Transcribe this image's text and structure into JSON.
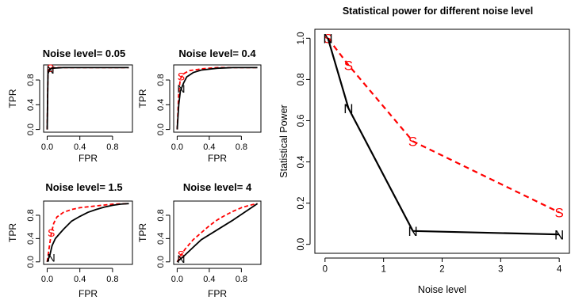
{
  "colors": {
    "N": "#000000",
    "S": "#ff0000"
  },
  "chart_data": [
    {
      "type": "line",
      "title": "Noise level= 0.05",
      "xlabel": "FPR",
      "ylabel": "TPR",
      "xlim": [
        0,
        1
      ],
      "ylim": [
        0,
        1
      ],
      "x_ticks": [
        "0.0",
        "0.4",
        "0.8"
      ],
      "y_ticks": [
        "0.0",
        "0.4",
        "0.8"
      ],
      "series": [
        {
          "marker": "N",
          "style": "solid",
          "x": [
            0,
            0.01,
            0.03,
            0.06,
            0.2,
            1.0
          ],
          "y": [
            0,
            0.9,
            0.97,
            0.99,
            1.0,
            1.0
          ],
          "marker_point": [
            0.04,
            0.97
          ]
        },
        {
          "marker": "S",
          "style": "dashed",
          "x": [
            0,
            0.01,
            0.03,
            0.06,
            0.2,
            1.0
          ],
          "y": [
            0,
            0.95,
            0.99,
            1.0,
            1.0,
            1.0
          ],
          "marker_point": [
            0.04,
            0.99
          ]
        }
      ]
    },
    {
      "type": "line",
      "title": "Noise level= 0.4",
      "xlabel": "FPR",
      "ylabel": "TPR",
      "xlim": [
        0,
        1
      ],
      "ylim": [
        0,
        1
      ],
      "x_ticks": [
        "0.0",
        "0.4",
        "0.8"
      ],
      "y_ticks": [
        "0.0",
        "0.4",
        "0.8"
      ],
      "series": [
        {
          "marker": "N",
          "style": "solid",
          "x": [
            0,
            0.02,
            0.04,
            0.08,
            0.12,
            0.2,
            0.3,
            0.5,
            0.7,
            1.0
          ],
          "y": [
            0,
            0.4,
            0.62,
            0.75,
            0.85,
            0.92,
            0.96,
            0.99,
            1.0,
            1.0
          ],
          "marker_point": [
            0.05,
            0.66
          ]
        },
        {
          "marker": "S",
          "style": "dashed",
          "x": [
            0,
            0.02,
            0.04,
            0.08,
            0.15,
            0.3,
            0.5,
            1.0
          ],
          "y": [
            0,
            0.6,
            0.82,
            0.9,
            0.95,
            0.98,
            1.0,
            1.0
          ],
          "marker_point": [
            0.05,
            0.86
          ]
        }
      ]
    },
    {
      "type": "line",
      "title": "Noise level= 1.5",
      "xlabel": "FPR",
      "ylabel": "TPR",
      "xlim": [
        0,
        1
      ],
      "ylim": [
        0,
        1
      ],
      "x_ticks": [
        "0.0",
        "0.4",
        "0.8"
      ],
      "y_ticks": [
        "0.0",
        "0.4",
        "0.8"
      ],
      "series": [
        {
          "marker": "N",
          "style": "solid",
          "x": [
            0,
            0.03,
            0.06,
            0.1,
            0.15,
            0.2,
            0.3,
            0.4,
            0.5,
            0.6,
            0.7,
            0.8,
            0.9,
            1.0
          ],
          "y": [
            0,
            0.1,
            0.28,
            0.4,
            0.48,
            0.56,
            0.7,
            0.78,
            0.85,
            0.9,
            0.94,
            0.97,
            0.99,
            1.0
          ],
          "marker_point": [
            0.05,
            0.07
          ]
        },
        {
          "marker": "S",
          "style": "dashed",
          "x": [
            0,
            0.03,
            0.05,
            0.08,
            0.12,
            0.2,
            0.3,
            0.4,
            0.6,
            0.8,
            1.0
          ],
          "y": [
            0,
            0.3,
            0.48,
            0.66,
            0.77,
            0.85,
            0.9,
            0.93,
            0.96,
            0.99,
            1.0
          ],
          "marker_point": [
            0.05,
            0.5
          ]
        }
      ]
    },
    {
      "type": "line",
      "title": "Noise level= 4",
      "xlabel": "FPR",
      "ylabel": "TPR",
      "xlim": [
        0,
        1
      ],
      "ylim": [
        0,
        1
      ],
      "x_ticks": [
        "0.0",
        "0.4",
        "0.8"
      ],
      "y_ticks": [
        "0.0",
        "0.4",
        "0.8"
      ],
      "series": [
        {
          "marker": "N",
          "style": "solid",
          "x": [
            0,
            0.05,
            0.1,
            0.2,
            0.3,
            0.5,
            0.7,
            1.0
          ],
          "y": [
            0,
            0.06,
            0.12,
            0.25,
            0.38,
            0.55,
            0.72,
            1.0
          ],
          "marker_point": [
            0.05,
            0.05
          ]
        },
        {
          "marker": "S",
          "style": "dashed",
          "x": [
            0,
            0.05,
            0.1,
            0.2,
            0.3,
            0.4,
            0.5,
            0.6,
            0.7,
            0.8,
            0.9,
            1.0
          ],
          "y": [
            0,
            0.12,
            0.22,
            0.38,
            0.5,
            0.62,
            0.72,
            0.8,
            0.87,
            0.93,
            0.97,
            1.0
          ],
          "marker_point": [
            0.05,
            0.13
          ]
        }
      ]
    },
    {
      "type": "line",
      "title": "Statistical power for different noise level",
      "xlabel": "Noise level",
      "ylabel": "Statistical Power",
      "xlim": [
        0,
        4
      ],
      "ylim": [
        0,
        1
      ],
      "x_ticks": [
        "0",
        "1",
        "2",
        "3",
        "4"
      ],
      "y_ticks": [
        "0.0",
        "0.2",
        "0.4",
        "0.6",
        "0.8",
        "1.0"
      ],
      "x_categories": [
        0.05,
        0.4,
        1.5,
        4
      ],
      "series": [
        {
          "marker": "N",
          "style": "solid",
          "y": [
            1.0,
            0.66,
            0.065,
            0.048
          ]
        },
        {
          "marker": "S",
          "style": "dashed",
          "y": [
            1.0,
            0.87,
            0.5,
            0.155
          ]
        }
      ]
    }
  ]
}
